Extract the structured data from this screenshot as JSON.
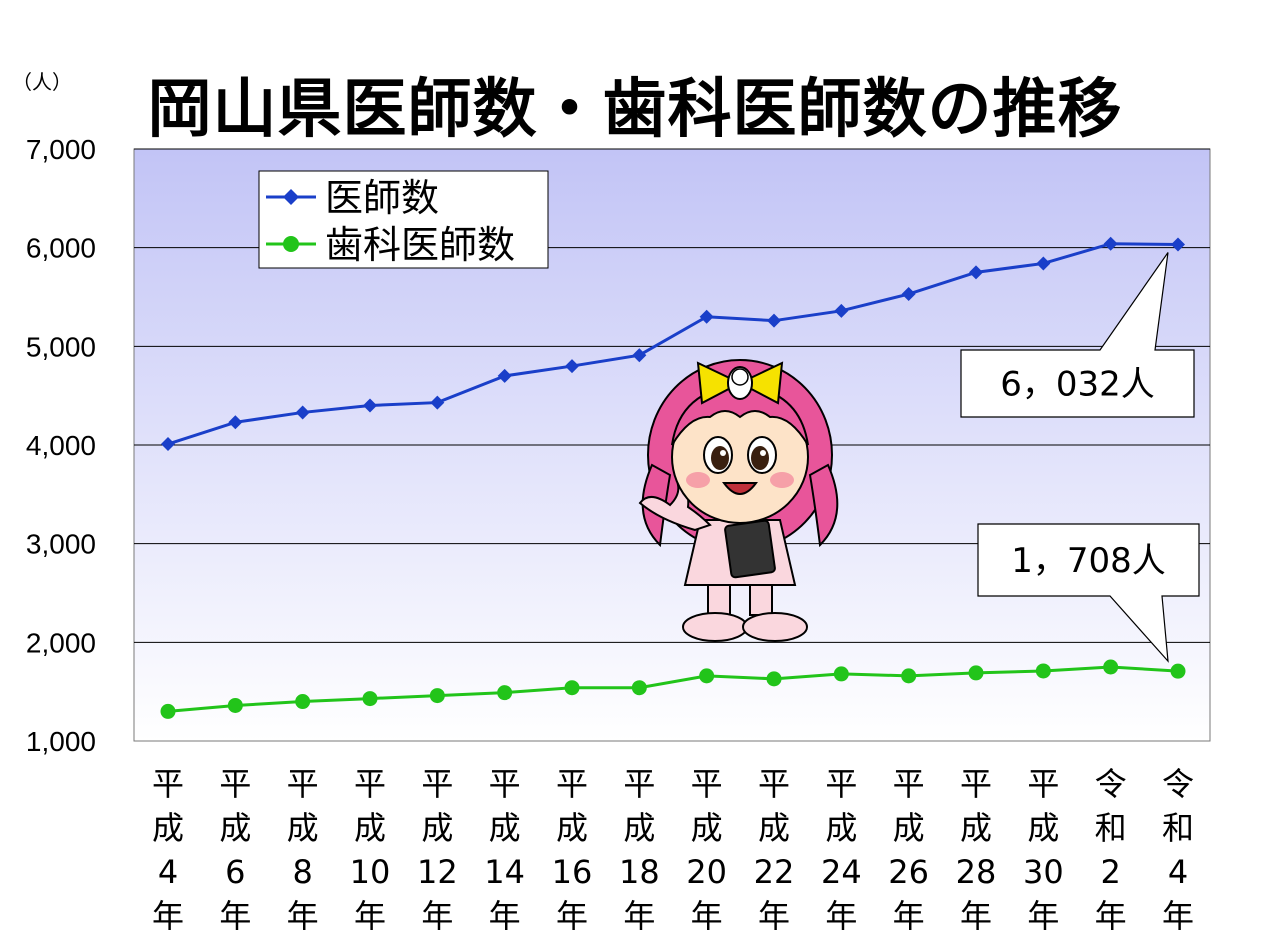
{
  "chart_data": {
    "type": "line",
    "title": "岡山県医師数・歯科医師数の推移",
    "unit_label": "（人）",
    "ylim": [
      1000,
      7000
    ],
    "y_ticks": [
      "1,000",
      "2,000",
      "3,000",
      "4,000",
      "5,000",
      "6,000",
      "7,000"
    ],
    "y_tick_values": [
      1000,
      2000,
      3000,
      4000,
      5000,
      6000,
      7000
    ],
    "categories": [
      [
        "平",
        "成",
        "4",
        "年"
      ],
      [
        "平",
        "成",
        "6",
        "年"
      ],
      [
        "平",
        "成",
        "8",
        "年"
      ],
      [
        "平",
        "成",
        "10",
        "年"
      ],
      [
        "平",
        "成",
        "12",
        "年"
      ],
      [
        "平",
        "成",
        "14",
        "年"
      ],
      [
        "平",
        "成",
        "16",
        "年"
      ],
      [
        "平",
        "成",
        "18",
        "年"
      ],
      [
        "平",
        "成",
        "20",
        "年"
      ],
      [
        "平",
        "成",
        "22",
        "年"
      ],
      [
        "平",
        "成",
        "24",
        "年"
      ],
      [
        "平",
        "成",
        "26",
        "年"
      ],
      [
        "平",
        "成",
        "28",
        "年"
      ],
      [
        "平",
        "成",
        "30",
        "年"
      ],
      [
        "令",
        "和",
        "2",
        "年"
      ],
      [
        "令",
        "和",
        "4",
        "年"
      ]
    ],
    "series": [
      {
        "name": "医師数",
        "color": "#1a3fc9",
        "marker": "diamond",
        "values": [
          4010,
          4230,
          4330,
          4400,
          4430,
          4700,
          4800,
          4910,
          5300,
          5260,
          5360,
          5530,
          5750,
          5840,
          6040,
          6032
        ]
      },
      {
        "name": "歯科医師数",
        "color": "#22c41a",
        "marker": "circle",
        "values": [
          1300,
          1360,
          1400,
          1430,
          1460,
          1490,
          1540,
          1540,
          1660,
          1630,
          1680,
          1660,
          1690,
          1710,
          1750,
          1708
        ]
      }
    ],
    "callouts": [
      {
        "series": 0,
        "text": "6，032人"
      },
      {
        "series": 1,
        "text": "1，708人"
      }
    ],
    "grid": true,
    "legend": "top-left"
  },
  "mascot_icon": "nurse-girl-mascot"
}
